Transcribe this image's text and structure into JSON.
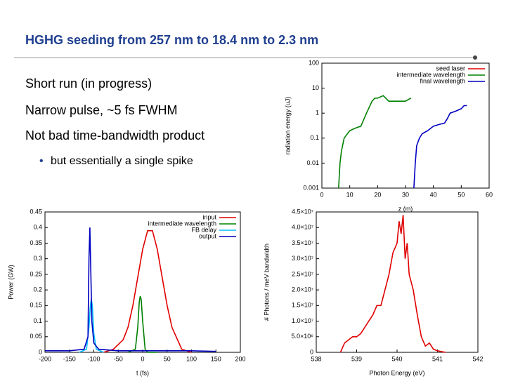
{
  "title": "HGHG seeding from 257 nm to 18.4 nm to 2.3 nm",
  "bullets": [
    "Short run (in progress)",
    "Narrow pulse, ~5 fs FWHM",
    "Not bad time-bandwidth product"
  ],
  "sub_bullets": [
    "but essentially a single spike"
  ],
  "chart_data": [
    {
      "type": "line",
      "xlabel": "z (m)",
      "ylabel": "radiation energy (uJ)",
      "log_y": true,
      "xlim": [
        0,
        60
      ],
      "xticks": [
        0,
        10,
        20,
        30,
        40,
        50,
        60
      ],
      "ylim": [
        0.001,
        100
      ],
      "yticks": [
        0.001,
        0.01,
        0.1,
        1,
        10,
        100
      ],
      "series": [
        {
          "name": "seed laser",
          "color": "#e00000",
          "x": [],
          "values": []
        },
        {
          "name": "intermediate wavelength",
          "color": "#008000",
          "x": [
            6,
            6.5,
            7,
            8,
            10,
            12,
            14,
            16,
            18,
            19,
            20,
            22,
            24,
            26,
            28,
            30,
            31,
            32
          ],
          "values": [
            0.001,
            0.01,
            0.03,
            0.1,
            0.2,
            0.25,
            0.3,
            1,
            3,
            4,
            4,
            5,
            3,
            3,
            3,
            3,
            3.5,
            4
          ]
        },
        {
          "name": "final wavelength",
          "color": "#0000c0",
          "x": [
            33,
            33.5,
            34,
            35,
            36,
            38,
            40,
            42,
            44,
            45,
            46,
            48,
            50,
            51,
            52
          ],
          "values": [
            0.001,
            0.01,
            0.05,
            0.1,
            0.15,
            0.2,
            0.3,
            0.35,
            0.4,
            0.6,
            1,
            1.2,
            1.5,
            2,
            2
          ]
        }
      ]
    },
    {
      "type": "line",
      "xlabel": "t (fs)",
      "ylabel": "Power (GW)",
      "log_y": false,
      "xlim": [
        -200,
        200
      ],
      "xticks": [
        -200,
        -150,
        -100,
        -50,
        0,
        50,
        100,
        150,
        200
      ],
      "ylim": [
        0,
        0.45
      ],
      "yticks": [
        0,
        0.05,
        0.1,
        0.15,
        0.2,
        0.25,
        0.3,
        0.35,
        0.4,
        0.45
      ],
      "series": [
        {
          "name": "input",
          "color": "#e00000",
          "x": [
            -80,
            -60,
            -40,
            -30,
            -20,
            -10,
            0,
            10,
            20,
            30,
            40,
            50,
            60,
            80,
            100
          ],
          "values": [
            0,
            0.01,
            0.04,
            0.08,
            0.15,
            0.24,
            0.33,
            0.39,
            0.39,
            0.33,
            0.24,
            0.15,
            0.08,
            0.01,
            0
          ]
        },
        {
          "name": "intermediate wavelength",
          "color": "#008000",
          "x": [
            -30,
            -15,
            -10,
            -7,
            -5,
            -3,
            0,
            5,
            10,
            30
          ],
          "values": [
            0,
            0.01,
            0.08,
            0.16,
            0.18,
            0.17,
            0.1,
            0.01,
            0,
            0
          ]
        },
        {
          "name": "FB delay",
          "color": "#00c0ff",
          "x": [
            -130,
            -115,
            -110,
            -107,
            -105,
            -103,
            -100,
            -95,
            -80
          ],
          "values": [
            0,
            0.01,
            0.08,
            0.15,
            0.17,
            0.15,
            0.06,
            0.01,
            0
          ]
        },
        {
          "name": "output",
          "color": "#0000c0",
          "x": [
            -200,
            -150,
            -120,
            -112,
            -110,
            -108,
            -106,
            -104,
            -100,
            -90,
            -50,
            0,
            50,
            100,
            150
          ],
          "values": [
            0.005,
            0.005,
            0.01,
            0.05,
            0.3,
            0.4,
            0.25,
            0.1,
            0.03,
            0.01,
            0.005,
            0.005,
            0.005,
            0.005,
            0.003
          ]
        }
      ]
    },
    {
      "type": "line",
      "xlabel": "Photon Energy (eV)",
      "ylabel": "# Photons / meV bandwidth",
      "log_y": false,
      "xlim": [
        538,
        542
      ],
      "xticks": [
        538,
        539,
        540,
        541,
        542
      ],
      "ylim": [
        0,
        45000000
      ],
      "yticks": [
        0,
        {
          "value": 5000000,
          "label": "5.0×10⁶"
        },
        {
          "value": 10000000,
          "label": "1.0×10⁷"
        },
        {
          "value": 15000000,
          "label": "1.5×10⁷"
        },
        {
          "value": 20000000,
          "label": "2.0×10⁷"
        },
        {
          "value": 25000000,
          "label": "2.5×10⁷"
        },
        {
          "value": 30000000,
          "label": "3.0×10⁷"
        },
        {
          "value": 35000000,
          "label": "3.5×10⁷"
        },
        {
          "value": 40000000,
          "label": "4.0×10⁷"
        },
        {
          "value": 45000000,
          "label": "4.5×10⁷"
        }
      ],
      "color": "#e00000",
      "x": [
        538.6,
        538.7,
        538.8,
        538.9,
        539.0,
        539.1,
        539.2,
        539.3,
        539.4,
        539.5,
        539.6,
        539.7,
        539.8,
        539.9,
        540.0,
        540.05,
        540.1,
        540.15,
        540.2,
        540.25,
        540.3,
        540.4,
        540.5,
        540.6,
        540.7,
        540.8,
        540.9,
        541.0,
        541.2
      ],
      "values": [
        0,
        3000000,
        4000000,
        5000000,
        5000000,
        6000000,
        8000000,
        10000000,
        12000000,
        15000000,
        15000000,
        20000000,
        25000000,
        32000000,
        35000000,
        42000000,
        38000000,
        44000000,
        30000000,
        35000000,
        25000000,
        20000000,
        12000000,
        5000000,
        2000000,
        3000000,
        1000000,
        500000,
        0
      ]
    }
  ]
}
